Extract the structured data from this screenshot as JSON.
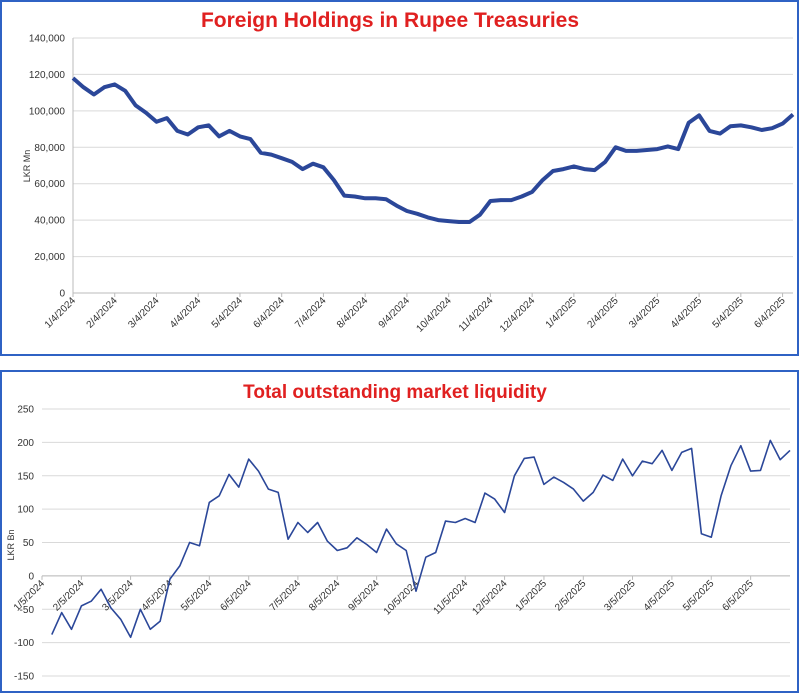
{
  "chart_data": [
    {
      "type": "line",
      "title": "Foreign Holdings in Rupee Treasuries",
      "y_label": "LKR Mn",
      "categories": [
        "1/4/2024",
        null,
        null,
        null,
        "2/4/2024",
        null,
        null,
        null,
        "3/4/2024",
        null,
        null,
        null,
        "4/4/2024",
        null,
        null,
        null,
        "5/4/2024",
        null,
        null,
        null,
        "6/4/2024",
        null,
        null,
        null,
        "7/4/2024",
        null,
        null,
        null,
        "8/4/2024",
        null,
        null,
        null,
        "9/4/2024",
        null,
        null,
        null,
        "10/4/2024",
        null,
        null,
        null,
        "11/4/2024",
        null,
        null,
        null,
        "12/4/2024",
        null,
        null,
        null,
        "1/4/2025",
        null,
        null,
        null,
        "2/4/2025",
        null,
        null,
        null,
        "3/4/2025",
        null,
        null,
        null,
        "4/4/2025",
        null,
        null,
        null,
        "5/4/2025",
        null,
        null,
        null,
        "6/4/2025",
        null
      ],
      "series": [
        {
          "name": null,
          "color": "#2b4799",
          "values": [
            118000,
            113000,
            109000,
            113000,
            114500,
            111000,
            103000,
            99000,
            94000,
            96000,
            89000,
            87000,
            91000,
            92000,
            86000,
            89000,
            86000,
            84500,
            77000,
            76000,
            74000,
            72000,
            68000,
            71000,
            69000,
            62000,
            53500,
            53000,
            52000,
            52000,
            51500,
            48000,
            45000,
            43500,
            41500,
            40000,
            39500,
            39000,
            39000,
            43000,
            50500,
            51000,
            51000,
            53000,
            55500,
            62000,
            67000,
            68000,
            69500,
            68000,
            67500,
            72000,
            80000,
            78000,
            78000,
            78500,
            79000,
            80500,
            79000,
            93500,
            97500,
            89000,
            87500,
            91500,
            92000,
            91000,
            89500,
            90500,
            93000,
            98000
          ]
        }
      ],
      "ylim": [
        0,
        140000
      ],
      "yticks": [
        0,
        {
          "value": 20000,
          "label": "20,000"
        },
        {
          "value": 40000,
          "label": "40,000"
        },
        {
          "value": 60000,
          "label": "60,000"
        },
        {
          "value": 80000,
          "label": "80,000"
        },
        {
          "value": 100000,
          "label": "100,000"
        },
        {
          "value": 120000,
          "label": "120,000"
        },
        {
          "value": 140000,
          "label": "140,000"
        }
      ],
      "grid": true
    },
    {
      "type": "line",
      "title": "Total outstanding market liquidity",
      "y_label": "LKR Bn",
      "categories": [
        "1/5/2024",
        null,
        null,
        null,
        "2/5/2024",
        null,
        null,
        null,
        null,
        "3/5/2024",
        null,
        null,
        null,
        "4/5/2024",
        null,
        null,
        null,
        "5/5/2024",
        null,
        null,
        null,
        "6/5/2024",
        null,
        null,
        null,
        null,
        "7/5/2024",
        null,
        null,
        null,
        "8/5/2024",
        null,
        null,
        null,
        "9/5/2024",
        null,
        null,
        null,
        "10/5/2024",
        null,
        null,
        null,
        null,
        "11/5/2024",
        null,
        null,
        null,
        "12/5/2024",
        null,
        null,
        null,
        "1/5/2025",
        null,
        null,
        null,
        "2/5/2025",
        null,
        null,
        null,
        null,
        "3/5/2025",
        null,
        null,
        null,
        "4/5/2025",
        null,
        null,
        null,
        "5/5/2025",
        null,
        null,
        null,
        "6/5/2025",
        null,
        null,
        null,
        null
      ],
      "series": [
        {
          "name": null,
          "color": "#2b4799",
          "values": [
            null,
            -88,
            -55,
            -80,
            -45,
            -38,
            -20,
            -48,
            -65,
            -92,
            -50,
            -80,
            -68,
            -5,
            15,
            50,
            45,
            110,
            120,
            152,
            133,
            175,
            157,
            130,
            125,
            55,
            80,
            65,
            80,
            52,
            38,
            42,
            57,
            47,
            35,
            70,
            48,
            38,
            -23,
            28,
            35,
            82,
            80,
            86,
            80,
            124,
            115,
            95,
            150,
            176,
            178,
            137,
            148,
            140,
            130,
            112,
            125,
            151,
            143,
            175,
            150,
            172,
            168,
            188,
            158,
            185,
            191,
            63,
            58,
            120,
            165,
            195,
            157,
            158,
            203,
            174,
            188
          ]
        }
      ],
      "ylim": [
        -150,
        250
      ],
      "yticks": [
        -150,
        -100,
        -50,
        0,
        50,
        100,
        150,
        200,
        250
      ],
      "grid": true
    }
  ]
}
